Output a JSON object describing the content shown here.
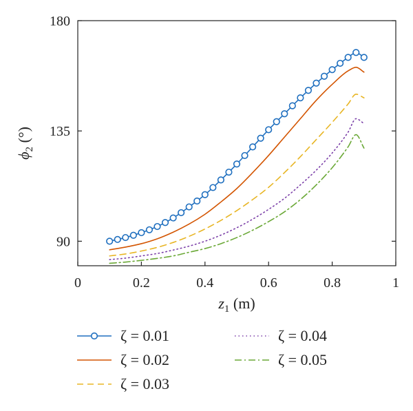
{
  "chart_data": {
    "type": "line",
    "xlabel": {
      "var": "z",
      "sub": "1",
      "unit": " (m)"
    },
    "ylabel": {
      "var": "ϕ",
      "sub": "2",
      "unit": " (°)"
    },
    "xlim": [
      0,
      1
    ],
    "ylim": [
      80,
      180
    ],
    "xticks": [
      0,
      0.2,
      0.4,
      0.6,
      0.8,
      1
    ],
    "xtick_labels": [
      "0",
      "0.2",
      "0.4",
      "0.6",
      "0.8",
      "1"
    ],
    "yticks": [
      90,
      135,
      180
    ],
    "ytick_labels": [
      "90",
      "135",
      "180"
    ],
    "grid": false,
    "legend_position": "bottom",
    "x": [
      0.1,
      0.15,
      0.2,
      0.25,
      0.3,
      0.35,
      0.4,
      0.45,
      0.5,
      0.55,
      0.6,
      0.65,
      0.7,
      0.75,
      0.8,
      0.85,
      0.875,
      0.9
    ],
    "series": [
      {
        "name": "ζ = 0.01",
        "color": "#1f6fbf",
        "style": "solid-marker",
        "values": [
          90.0,
          91.5,
          93.5,
          96.0,
          99.5,
          104.0,
          109.0,
          115.0,
          121.5,
          128.5,
          135.5,
          142.0,
          148.5,
          154.5,
          160.0,
          165.0,
          167.0,
          165.0
        ]
      },
      {
        "name": "ζ = 0.02",
        "color": "#d35400",
        "style": "solid",
        "values": [
          86.5,
          87.6,
          89.0,
          91.0,
          93.7,
          97.0,
          101.0,
          106.0,
          111.5,
          118.0,
          125.0,
          132.5,
          140.0,
          147.5,
          154.0,
          159.5,
          161.0,
          159.0
        ]
      },
      {
        "name": "ζ = 0.03",
        "color": "#e8b523",
        "style": "dashed",
        "values": [
          84.0,
          84.8,
          86.0,
          87.5,
          89.5,
          92.0,
          95.0,
          98.5,
          102.5,
          107.0,
          112.0,
          118.0,
          124.5,
          131.5,
          138.5,
          146.0,
          150.0,
          148.5
        ]
      },
      {
        "name": "ζ = 0.04",
        "color": "#7b3fa8",
        "style": "dotted",
        "values": [
          82.5,
          83.1,
          84.0,
          85.0,
          86.4,
          88.0,
          90.0,
          92.5,
          95.5,
          99.0,
          103.0,
          107.5,
          113.0,
          119.0,
          126.0,
          134.5,
          140.0,
          138.0
        ]
      },
      {
        "name": "ζ = 0.05",
        "color": "#6aa836",
        "style": "dashdot",
        "values": [
          81.0,
          81.5,
          82.2,
          83.0,
          84.0,
          85.5,
          87.0,
          89.0,
          91.5,
          94.5,
          98.0,
          102.0,
          107.0,
          113.0,
          120.0,
          128.5,
          133.5,
          128.0
        ]
      }
    ]
  }
}
